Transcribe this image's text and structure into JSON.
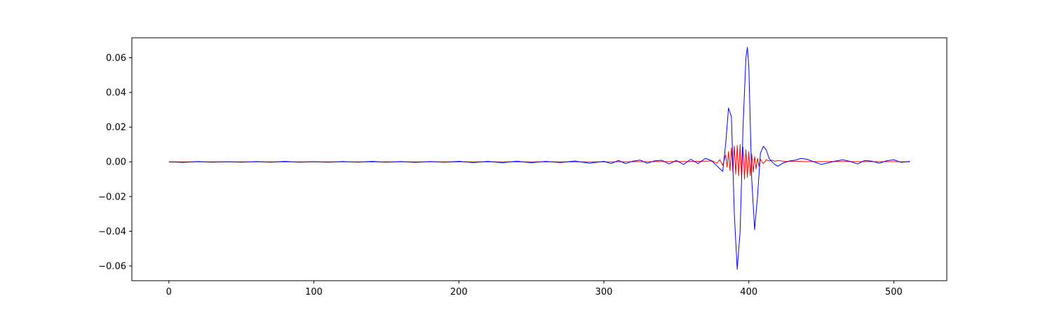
{
  "chart_data": {
    "type": "line",
    "title": "",
    "xlabel": "",
    "ylabel": "",
    "xlim": [
      -25.55,
      536.55
    ],
    "ylim": [
      -0.0685,
      0.0715
    ],
    "x_ticks": [
      0,
      100,
      200,
      300,
      400,
      500
    ],
    "x_tick_labels": [
      "0",
      "100",
      "200",
      "300",
      "400",
      "500"
    ],
    "y_ticks": [
      -0.06,
      -0.04,
      -0.02,
      0.0,
      0.02,
      0.04,
      0.06
    ],
    "y_tick_labels": [
      "−0.06",
      "−0.04",
      "−0.02",
      "0.00",
      "0.02",
      "0.04",
      "0.06"
    ],
    "grid": false,
    "legend": "none",
    "series": [
      {
        "color": "#ff0000",
        "x": [
          0,
          300,
          360,
          375,
          378,
          380,
          382,
          384,
          385,
          386,
          387,
          388,
          389,
          390,
          391,
          392,
          393,
          394,
          395,
          396,
          397,
          398,
          399,
          400,
          401,
          402,
          403,
          404,
          405,
          406,
          407,
          408,
          410,
          412,
          414,
          416,
          418,
          420,
          425,
          430,
          440,
          460,
          480,
          500,
          511
        ],
        "y": [
          0.0,
          0.0,
          0.0002,
          0.0005,
          -0.0008,
          0.0012,
          -0.002,
          0.004,
          -0.003,
          0.006,
          -0.005,
          0.008,
          -0.006,
          0.009,
          -0.007,
          0.0095,
          -0.008,
          0.01,
          -0.009,
          0.0085,
          -0.01,
          0.007,
          -0.009,
          0.006,
          -0.008,
          0.0045,
          -0.006,
          0.003,
          -0.004,
          0.002,
          -0.0025,
          0.0015,
          -0.001,
          0.0012,
          0.0005,
          0.001,
          0.0003,
          0.0008,
          0.0002,
          0.0004,
          0.0001,
          0.0002,
          0.0001,
          0.0001,
          0.0
        ]
      },
      {
        "color": "#0000ff",
        "x": [
          0,
          10,
          20,
          30,
          40,
          50,
          60,
          70,
          80,
          90,
          100,
          110,
          120,
          130,
          140,
          150,
          160,
          170,
          180,
          190,
          200,
          210,
          220,
          230,
          240,
          250,
          260,
          270,
          280,
          290,
          300,
          305,
          310,
          315,
          320,
          325,
          330,
          335,
          340,
          345,
          350,
          355,
          360,
          365,
          370,
          374,
          377,
          380,
          382,
          384,
          386,
          388,
          390,
          392,
          394,
          396,
          398,
          399,
          400,
          402,
          404,
          406,
          408,
          410,
          412,
          414,
          416,
          418,
          420,
          424,
          428,
          432,
          436,
          440,
          445,
          450,
          455,
          460,
          465,
          470,
          475,
          480,
          485,
          490,
          495,
          500,
          505,
          511
        ],
        "y": [
          0.0,
          -0.0003,
          0.0002,
          -0.0002,
          0.0001,
          -0.0002,
          0.0002,
          -0.0002,
          0.0003,
          -0.0002,
          0.0001,
          -0.0002,
          0.0002,
          -0.0002,
          0.0003,
          -0.0002,
          0.0002,
          -0.0003,
          0.0002,
          -0.0002,
          0.0003,
          -0.0004,
          0.0003,
          -0.0005,
          0.0004,
          -0.0005,
          0.0003,
          -0.0004,
          0.0005,
          -0.0008,
          0.0003,
          -0.001,
          0.0008,
          -0.001,
          0.0004,
          0.001,
          -0.0008,
          0.0006,
          0.0009,
          -0.0012,
          0.0008,
          -0.0015,
          0.0015,
          -0.001,
          0.002,
          0.0008,
          -0.0015,
          -0.004,
          -0.0055,
          0.01,
          0.031,
          0.026,
          -0.03,
          -0.062,
          -0.04,
          0.02,
          0.06,
          0.066,
          0.055,
          -0.01,
          -0.039,
          -0.02,
          0.005,
          0.009,
          0.007,
          0.002,
          0.0,
          -0.0015,
          -0.0025,
          -0.0005,
          0.0005,
          0.001,
          0.002,
          0.0015,
          0.0,
          -0.0015,
          -0.0005,
          0.0005,
          0.0012,
          0.0002,
          -0.0012,
          0.0008,
          0.0004,
          -0.0008,
          0.0006,
          0.0012,
          -0.0003,
          0.0003
        ]
      }
    ]
  }
}
